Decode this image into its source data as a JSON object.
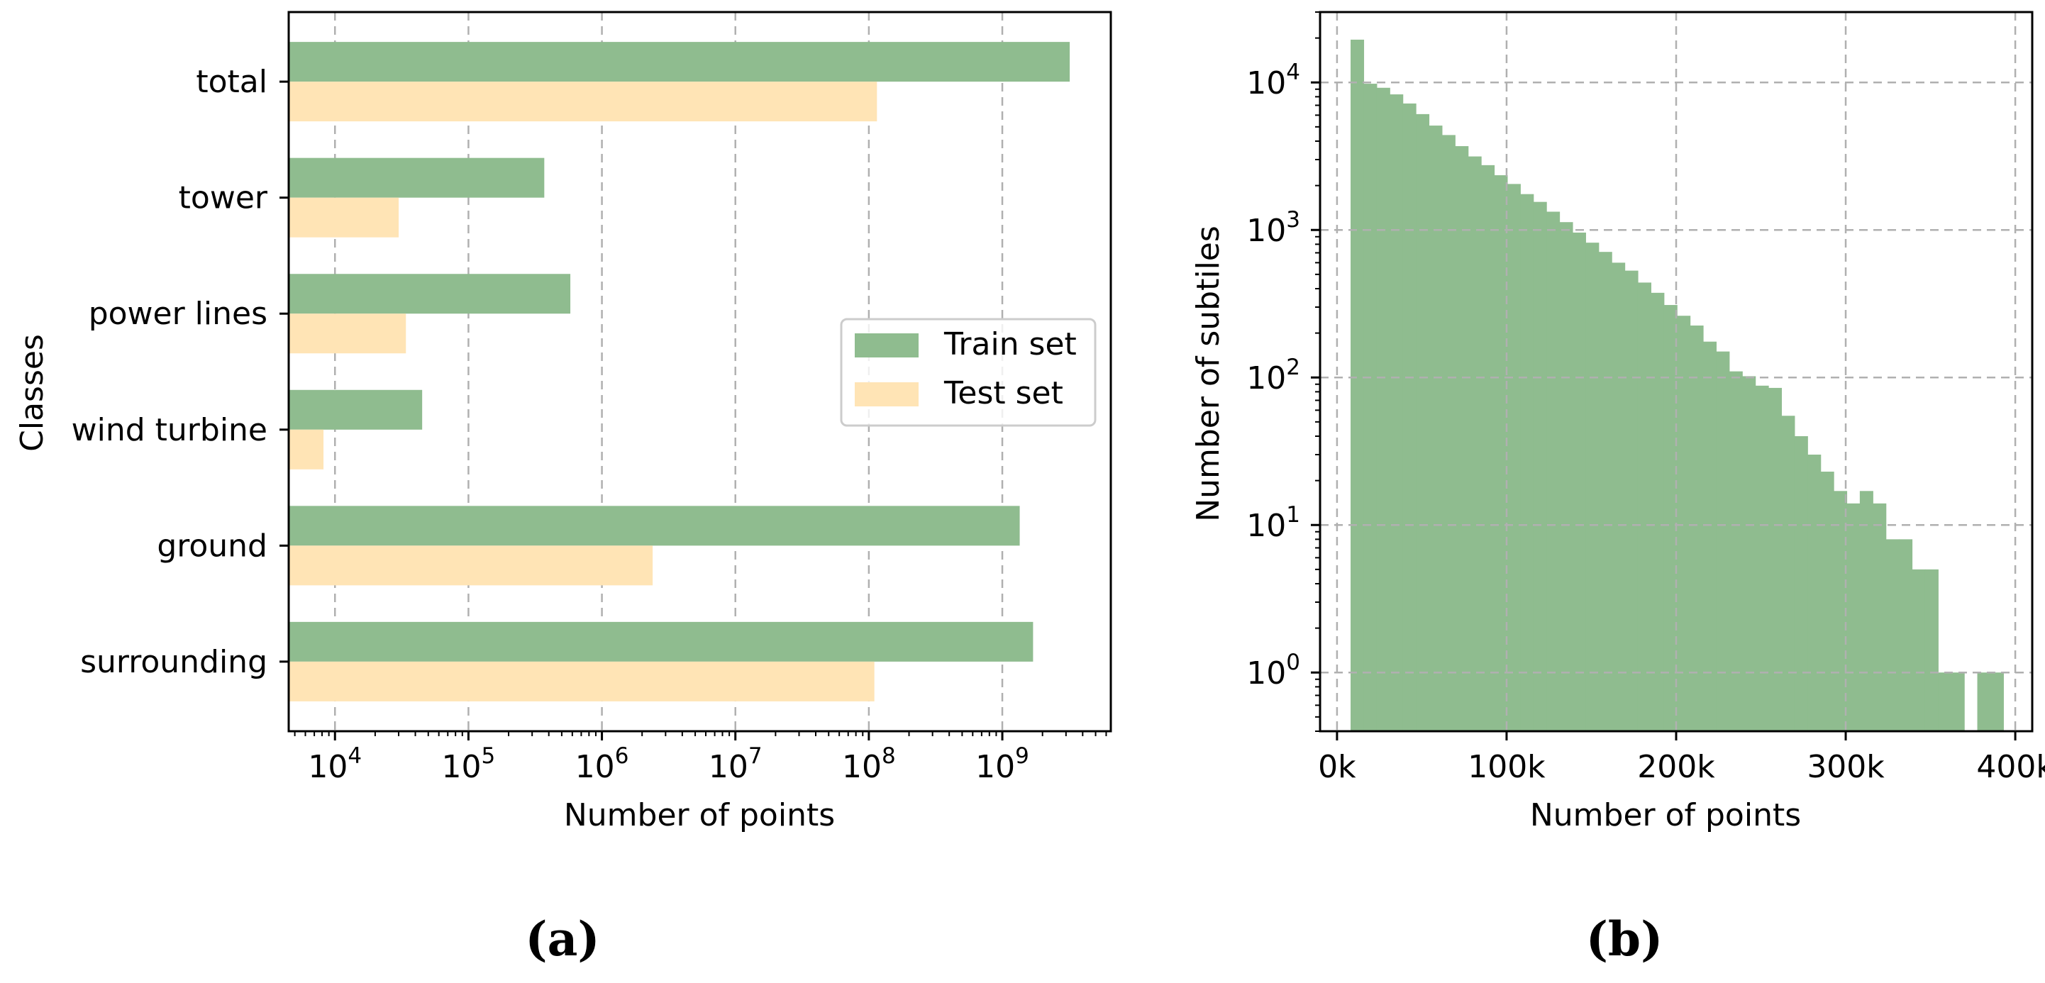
{
  "colors": {
    "train": "#8fbc8f",
    "test": "#ffe4b5",
    "grid": "#b0b0b0",
    "axis": "#000000",
    "legend_border": "#cccccc"
  },
  "chart_data": [
    {
      "id": "a",
      "type": "bar",
      "orientation": "horizontal",
      "caption": "(a)",
      "xlabel": "Number of points",
      "ylabel": "Classes",
      "xscale": "log",
      "xlim": [
        4500,
        6500000000
      ],
      "x_tick_labels": [
        {
          "value": 10000,
          "base": "10",
          "exp": "4"
        },
        {
          "value": 100000,
          "base": "10",
          "exp": "5"
        },
        {
          "value": 1000000,
          "base": "10",
          "exp": "6"
        },
        {
          "value": 10000000,
          "base": "10",
          "exp": "7"
        },
        {
          "value": 100000000,
          "base": "10",
          "exp": "8"
        },
        {
          "value": 1000000000,
          "base": "10",
          "exp": "9"
        }
      ],
      "categories": [
        "total",
        "tower",
        "power lines",
        "wind turbine",
        "ground",
        "surrounding"
      ],
      "series": [
        {
          "name": "Train set",
          "color_key": "train",
          "values": [
            3200000000,
            370000,
            580000,
            45000,
            1350000000,
            1700000000
          ]
        },
        {
          "name": "Test set",
          "color_key": "test",
          "values": [
            115000000,
            30000,
            34000,
            8200,
            2400000,
            110000000
          ]
        }
      ],
      "legend": {
        "position": "center-right",
        "entries": [
          "Train set",
          "Test set"
        ]
      },
      "grid": {
        "x": true,
        "y": false
      }
    },
    {
      "id": "b",
      "type": "histogram",
      "caption": "(b)",
      "xlabel": "Number of points",
      "ylabel": "Number of subtiles",
      "yscale": "log",
      "xlim": [
        -10000,
        410000
      ],
      "ylim": [
        0.4,
        30000
      ],
      "x_tick_labels": [
        {
          "value": 0,
          "label": "0k"
        },
        {
          "value": 100000,
          "label": "100k"
        },
        {
          "value": 200000,
          "label": "200k"
        },
        {
          "value": 300000,
          "label": "300k"
        },
        {
          "value": 400000,
          "label": "400k"
        }
      ],
      "y_tick_labels": [
        {
          "value": 1,
          "base": "10",
          "exp": "0"
        },
        {
          "value": 10,
          "base": "10",
          "exp": "1"
        },
        {
          "value": 100,
          "base": "10",
          "exp": "2"
        },
        {
          "value": 1000,
          "base": "10",
          "exp": "3"
        },
        {
          "value": 10000,
          "base": "10",
          "exp": "4"
        }
      ],
      "bin_start": 8000,
      "bin_width": 7700,
      "counts": [
        19500,
        9800,
        9200,
        8300,
        7200,
        6100,
        5100,
        4400,
        3700,
        3150,
        2750,
        2350,
        2050,
        1750,
        1550,
        1330,
        1130,
        960,
        820,
        710,
        600,
        530,
        440,
        375,
        310,
        262,
        225,
        175,
        150,
        110,
        102,
        88,
        85,
        55,
        40,
        30,
        23,
        17,
        14,
        17,
        14,
        8,
        8,
        5,
        5,
        1,
        1,
        0,
        1,
        1
      ],
      "grid": {
        "x": true,
        "y": true
      }
    }
  ]
}
